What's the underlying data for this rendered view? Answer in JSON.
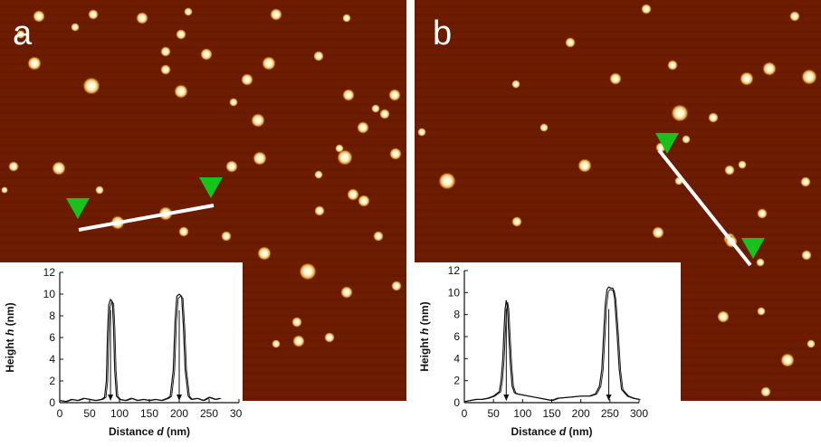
{
  "panels": [
    {
      "id": "a",
      "label": "a",
      "colors": {
        "background": "#6e1c00",
        "particle": "#fff4c0",
        "marker": "#17c21a",
        "line": "#ffffff"
      },
      "chart_data": {
        "type": "line",
        "title": "",
        "xlabel_prefix": "Distance ",
        "xlabel_var": "d",
        "xlabel_unit": " (nm)",
        "ylabel_prefix": "Height ",
        "ylabel_var": "h",
        "ylabel_unit": " (nm)",
        "xlim": [
          0,
          300
        ],
        "ylim": [
          0,
          12
        ],
        "x_ticks": [
          "0",
          "50",
          "100",
          "150",
          "200",
          "250",
          "300"
        ],
        "y_ticks": [
          "0",
          "2",
          "4",
          "6",
          "8",
          "10",
          "12"
        ],
        "peak_markers_x": [
          85,
          200
        ],
        "series": [
          {
            "x": [
              0,
              10,
              20,
              30,
              40,
              50,
              60,
              70,
              75,
              78,
              80,
              82,
              85,
              88,
              90,
              92,
              95,
              100,
              110,
              120,
              130,
              140,
              150,
              160,
              170,
              180,
              185,
              190,
              193,
              196,
              200,
              204,
              207,
              210,
              215,
              220,
              230,
              240,
              250,
              260,
              268
            ],
            "y": [
              0.2,
              0.1,
              0.3,
              0.2,
              0.4,
              0.3,
              0.2,
              0.3,
              0.5,
              2.0,
              6.5,
              9.0,
              9.5,
              9.3,
              7.0,
              3.0,
              0.6,
              0.3,
              0.2,
              0.4,
              0.2,
              0.3,
              0.2,
              0.3,
              0.2,
              0.4,
              0.6,
              3.0,
              7.5,
              9.8,
              10.0,
              9.8,
              7.0,
              3.0,
              0.6,
              0.3,
              0.4,
              0.2,
              0.5,
              0.3,
              0.4
            ]
          }
        ]
      }
    },
    {
      "id": "b",
      "label": "b",
      "colors": {
        "background": "#6e1c00",
        "particle": "#fff4c0",
        "marker": "#17c21a",
        "line": "#ffffff"
      },
      "chart_data": {
        "type": "line",
        "title": "",
        "xlabel_prefix": "Distance ",
        "xlabel_var": "d",
        "xlabel_unit": " (nm)",
        "ylabel_prefix": "Height ",
        "ylabel_var": "h",
        "ylabel_unit": " (nm)",
        "xlim": [
          0,
          300
        ],
        "ylim": [
          0,
          12
        ],
        "x_ticks": [
          "0",
          "50",
          "100",
          "150",
          "200",
          "250",
          "300"
        ],
        "y_ticks": [
          "0",
          "2",
          "4",
          "6",
          "8",
          "10",
          "12"
        ],
        "peak_markers_x": [
          72,
          248
        ],
        "series": [
          {
            "x": [
              0,
              10,
              20,
              30,
              40,
              50,
              55,
              60,
              63,
              66,
              68,
              70,
              72,
              74,
              76,
              79,
              82,
              86,
              90,
              100,
              120,
              140,
              150,
              160,
              180,
              200,
              215,
              225,
              232,
              236,
              239,
              242,
              245,
              248,
              252,
              255,
              258,
              262,
              266,
              270,
              280,
              290,
              300
            ],
            "y": [
              0.1,
              0.2,
              0.3,
              0.3,
              0.4,
              0.6,
              0.8,
              1.0,
              2.0,
              4.0,
              6.5,
              8.5,
              9.3,
              8.7,
              6.5,
              3.5,
              1.5,
              0.9,
              0.8,
              0.7,
              0.5,
              0.3,
              0.2,
              0.4,
              0.5,
              0.6,
              0.6,
              0.8,
              1.5,
              3.0,
              6.0,
              9.0,
              10.3,
              10.5,
              10.4,
              10.4,
              9.5,
              6.5,
              3.0,
              1.2,
              0.6,
              0.4,
              0.3
            ]
          }
        ]
      }
    }
  ]
}
